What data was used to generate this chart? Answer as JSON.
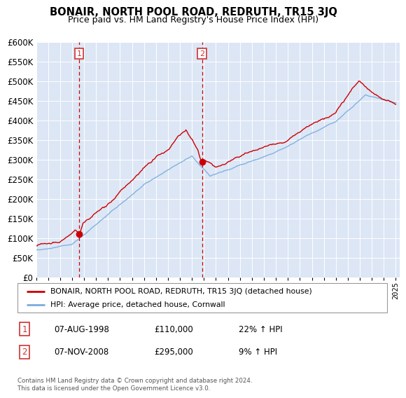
{
  "title": "BONAIR, NORTH POOL ROAD, REDRUTH, TR15 3JQ",
  "subtitle": "Price paid vs. HM Land Registry's House Price Index (HPI)",
  "legend_line1": "BONAIR, NORTH POOL ROAD, REDRUTH, TR15 3JQ (detached house)",
  "legend_line2": "HPI: Average price, detached house, Cornwall",
  "footer": "Contains HM Land Registry data © Crown copyright and database right 2024.\nThis data is licensed under the Open Government Licence v3.0.",
  "sale1_date": "07-AUG-1998",
  "sale1_price": 110000,
  "sale1_label": "22% ↑ HPI",
  "sale2_date": "07-NOV-2008",
  "sale2_price": 295000,
  "sale2_label": "9% ↑ HPI",
  "sale1_x": 1998.6,
  "sale2_x": 2008.85,
  "ylim_min": 0,
  "ylim_max": 600000,
  "yticks": [
    0,
    50000,
    100000,
    150000,
    200000,
    250000,
    300000,
    350000,
    400000,
    450000,
    500000,
    550000,
    600000
  ],
  "plot_bg": "#dce6f5",
  "red_line_color": "#cc0000",
  "blue_line_color": "#7aacdc",
  "vline_color": "#cc0000",
  "box_color": "#cc3333",
  "grid_color": "#ffffff",
  "background_color": "#ffffff"
}
